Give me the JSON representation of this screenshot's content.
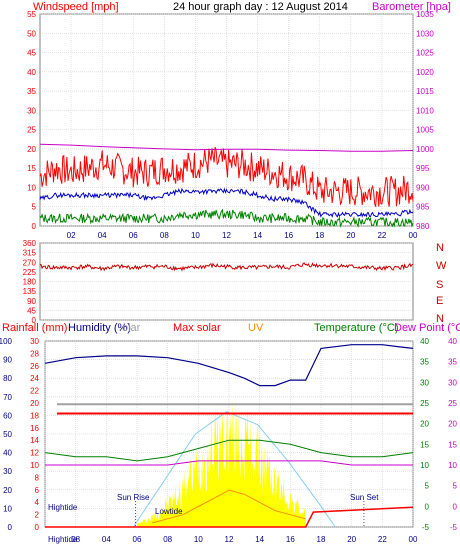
{
  "header": {
    "windspeed_label": "Windspeed [mph]",
    "date_label": "24 hour graph day : 12 August 2014",
    "barometer_label": "Barometer [hpa]"
  },
  "direction": {
    "letters": [
      "N",
      "W",
      "S",
      "E",
      "N"
    ]
  },
  "bottom_header": {
    "rainfall": "Rainfall (mm)",
    "humidity": "Humidity (%)",
    "solar": "olar",
    "max_solar": "Max solar",
    "uv": "UV",
    "temperature": "Temperature (°C)",
    "dew_point": "Dew Point (°C)"
  },
  "annotations": {
    "hightide_left": "Hightide",
    "sunrise": "Sun Rise",
    "lowtide": "Lowtide",
    "sunset": "Sun Set",
    "bottom_hightide": "Hightide",
    "bottom_08": "08",
    "bottom_sunrise_ghost": "Sun Rise"
  },
  "colors": {
    "wind_gust": "#ff0000",
    "wind_avg": "#0000cc",
    "wind_min": "#008000",
    "barometer": "#cc00cc",
    "direction": "#cc0000",
    "humidity": "#00008b",
    "solar_fill": "#ffff00",
    "max_solar": "#ff0000",
    "uv": "#ff8c00",
    "temperature": "#008000",
    "dew_point": "#cc00cc",
    "rain": "#ff0000",
    "solar_curve": "#87ceeb",
    "grid": "#d0d0d0"
  },
  "chart_data": [
    {
      "type": "line",
      "title": "24 hour graph day : 12 August 2014",
      "ylabel": "Windspeed [mph]",
      "y2label": "Barometer [hpa]",
      "x_ticks": [
        "02",
        "04",
        "06",
        "08",
        "10",
        "12",
        "14",
        "16",
        "18",
        "20",
        "22",
        "00"
      ],
      "ylim": [
        0,
        55
      ],
      "y_ticks": [
        0,
        5,
        10,
        15,
        20,
        25,
        30,
        35,
        40,
        45,
        50,
        55
      ],
      "y2lim": [
        980,
        1035
      ],
      "y2_ticks": [
        980,
        985,
        990,
        995,
        1000,
        1005,
        1010,
        1015,
        1020,
        1025,
        1030,
        1035
      ],
      "grid": true,
      "series": [
        {
          "name": "gust",
          "x": [
            0,
            1,
            2,
            3,
            4,
            5,
            6,
            7,
            8,
            9,
            10,
            11,
            12,
            13,
            14,
            15,
            16,
            17,
            18,
            19,
            20,
            21,
            22,
            23,
            24
          ],
          "values": [
            13,
            15,
            14,
            15,
            16,
            15,
            14,
            14,
            15,
            15,
            16,
            17,
            16,
            16,
            15,
            14,
            13,
            12,
            9,
            9,
            9,
            9,
            9,
            9,
            10
          ]
        },
        {
          "name": "average",
          "x": [
            0,
            1,
            2,
            3,
            4,
            5,
            6,
            7,
            8,
            9,
            10,
            11,
            12,
            13,
            14,
            15,
            16,
            17,
            18,
            19,
            20,
            21,
            22,
            23,
            24
          ],
          "values": [
            7,
            8,
            8,
            8,
            8,
            8,
            8,
            7,
            8,
            9,
            9,
            9,
            9,
            9,
            8,
            7,
            7,
            6,
            3,
            3,
            3,
            3,
            3,
            3,
            4
          ]
        },
        {
          "name": "minimum",
          "x": [
            0,
            1,
            2,
            3,
            4,
            5,
            6,
            7,
            8,
            9,
            10,
            11,
            12,
            13,
            14,
            15,
            16,
            17,
            18,
            19,
            20,
            21,
            22,
            23,
            24
          ],
          "values": [
            2,
            2,
            2,
            2,
            2,
            2,
            2,
            2,
            2,
            3,
            3,
            3,
            3,
            3,
            2,
            2,
            2,
            2,
            1,
            1,
            1,
            1,
            1,
            1,
            1
          ]
        },
        {
          "name": "barometer",
          "x": [
            0,
            2,
            4,
            6,
            8,
            10,
            12,
            14,
            16,
            18,
            20,
            22,
            24
          ],
          "values": [
            1001.2,
            1001.0,
            1000.6,
            1000.3,
            1000.0,
            999.8,
            999.9,
            999.9,
            999.7,
            999.6,
            999.4,
            999.4,
            999.6
          ]
        }
      ]
    },
    {
      "type": "line",
      "ylabel": "wind direction",
      "ylim": [
        0,
        360
      ],
      "y_ticks": [
        0,
        45,
        90,
        135,
        180,
        225,
        270,
        315,
        360
      ],
      "grid": true,
      "series": [
        {
          "name": "direction",
          "x": [
            0,
            1,
            2,
            3,
            4,
            5,
            6,
            7,
            8,
            9,
            10,
            11,
            12,
            13,
            14,
            15,
            16,
            17,
            18,
            19,
            20,
            21,
            22,
            23,
            24
          ],
          "values": [
            250,
            245,
            245,
            250,
            240,
            250,
            245,
            250,
            250,
            240,
            245,
            255,
            250,
            245,
            245,
            250,
            245,
            260,
            255,
            255,
            250,
            245,
            240,
            245,
            255
          ]
        }
      ]
    },
    {
      "type": "area",
      "x_ticks": [
        "Hightide",
        "08",
        "04",
        "06",
        "08",
        "10",
        "12",
        "14",
        "16",
        "18",
        "20",
        "22",
        "00"
      ],
      "ylabel": "Humidity (%)",
      "ylim": [
        0,
        100
      ],
      "y_ticks": [
        0,
        10,
        20,
        30,
        40,
        50,
        60,
        70,
        80,
        90,
        100
      ],
      "rain_ticks": [
        0,
        2,
        4,
        6,
        8,
        10,
        12,
        14,
        16,
        18,
        20,
        22,
        24,
        26,
        28,
        30
      ],
      "temp_ticks": [
        -5,
        0,
        5,
        10,
        15,
        20,
        25,
        30,
        35,
        40
      ],
      "dew_ticks": [
        -5,
        0,
        5,
        10,
        15,
        20,
        25,
        30,
        35,
        40
      ],
      "grid": true,
      "series": [
        {
          "name": "humidity",
          "x": [
            0,
            2,
            4,
            6,
            8,
            10,
            12,
            13,
            14,
            15,
            16,
            17,
            18,
            20,
            22,
            23,
            24
          ],
          "values": [
            88,
            91,
            92,
            92,
            91,
            88,
            83,
            80,
            76,
            76,
            79,
            79,
            96,
            98,
            98,
            97,
            96
          ]
        },
        {
          "name": "solar",
          "x": [
            6,
            7,
            8,
            9,
            10,
            11,
            12,
            13,
            14,
            15,
            16,
            17
          ],
          "values": [
            2,
            6,
            15,
            25,
            40,
            55,
            60,
            57,
            45,
            30,
            18,
            8
          ]
        },
        {
          "name": "max_solar",
          "x": [
            6,
            8,
            10,
            12,
            14,
            16,
            18,
            19
          ],
          "values": [
            0,
            25,
            50,
            62,
            55,
            35,
            12,
            0
          ]
        },
        {
          "name": "uv",
          "x": [
            7,
            8,
            9,
            10,
            11,
            12,
            13,
            14,
            15,
            16,
            17
          ],
          "values": [
            1,
            2,
            3,
            5,
            7,
            9,
            8,
            6,
            4,
            3,
            2
          ]
        },
        {
          "name": "temperature",
          "x": [
            0,
            2,
            4,
            6,
            8,
            10,
            12,
            14,
            16,
            18,
            20,
            22,
            24
          ],
          "values": [
            13,
            12,
            12,
            11,
            12,
            14,
            16,
            16,
            15,
            13,
            12,
            12,
            13
          ]
        },
        {
          "name": "dew_point",
          "x": [
            0,
            2,
            4,
            6,
            8,
            10,
            12,
            14,
            16,
            18,
            20,
            22,
            24
          ],
          "values": [
            10,
            10,
            10,
            10,
            10,
            11,
            11,
            11,
            11,
            11,
            10,
            10,
            10
          ]
        },
        {
          "name": "rain_total",
          "x": [
            0,
            17,
            17.5,
            24
          ],
          "values": [
            0,
            0,
            2.4,
            3.2
          ]
        }
      ]
    }
  ]
}
